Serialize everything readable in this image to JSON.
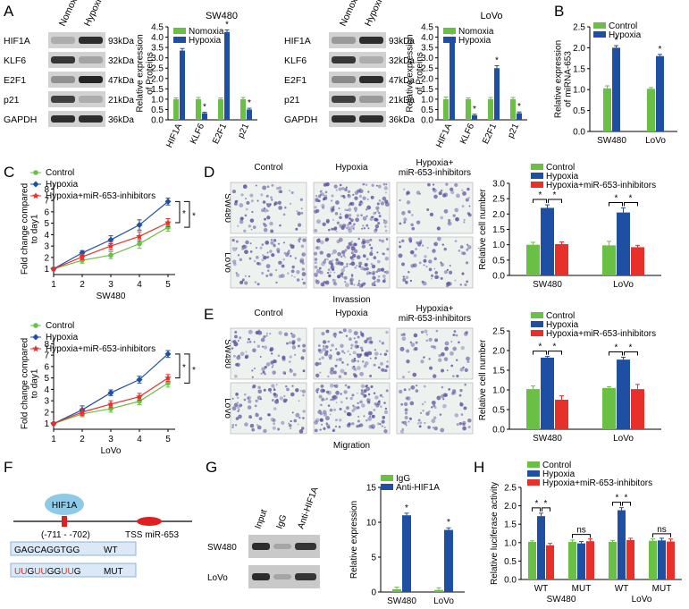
{
  "colors": {
    "control": "#6abf45",
    "hypoxia": "#1f4fa3",
    "inhib": "#e8302a",
    "blot_bg": "#d2d2d2",
    "band": "#1b1b1b",
    "box_fill": "#dbe9f7",
    "box_stroke": "#8fb3d6",
    "hif": "#8ecae6",
    "tss": "#e02020",
    "mut": "#c0392b",
    "micro_bg": "#eef2ef",
    "cell": "#5b4f9c"
  },
  "panels": {
    "A": "A",
    "B": "B",
    "C": "C",
    "D": "D",
    "E": "E",
    "F": "F",
    "G": "G",
    "H": "H"
  },
  "common": {
    "star": "*",
    "ns": "ns"
  },
  "blotA": {
    "lanes": [
      "Nomoxia",
      "Hypoxia"
    ],
    "proteins": [
      "HIF1A",
      "KLF6",
      "E2F1",
      "p21",
      "GAPDH"
    ],
    "kda": [
      "93kDa",
      "32kDa",
      "47kDa",
      "21kDa",
      "36kDa"
    ]
  },
  "blotA_sw": {
    "intensity": [
      [
        0.2,
        0.9
      ],
      [
        0.85,
        0.25
      ],
      [
        0.35,
        0.95
      ],
      [
        0.8,
        0.2
      ],
      [
        0.9,
        0.9
      ]
    ]
  },
  "blotA_lovo": {
    "intensity": [
      [
        0.3,
        0.9
      ],
      [
        0.85,
        0.2
      ],
      [
        0.4,
        0.9
      ],
      [
        0.8,
        0.3
      ],
      [
        0.9,
        0.9
      ]
    ]
  },
  "chart_data": [
    {
      "id": "A1",
      "type": "bar",
      "title": "SW480",
      "ylabel": "Relative expression\nof Proteins",
      "ylim": [
        0,
        4.5
      ],
      "yticks": [
        "0.0",
        "0.5",
        "1.0",
        "1.5",
        "2.0",
        "2.5",
        "3.0",
        "3.5",
        "4.0",
        "4.5"
      ],
      "tickvals": [
        0,
        0.5,
        1,
        1.5,
        2,
        2.5,
        3,
        3.5,
        4,
        4.5
      ],
      "categories": [
        "HIF1A",
        "KLF6",
        "E2F1",
        "p21"
      ],
      "legend": [
        "Nomoxia",
        "Hypoxia"
      ],
      "series": [
        {
          "name": "Nomoxia",
          "values": [
            1.0,
            1.0,
            1.0,
            1.0
          ],
          "err": [
            0.06,
            0.08,
            0.06,
            0.08
          ]
        },
        {
          "name": "Hypoxia",
          "values": [
            3.35,
            0.32,
            4.25,
            0.5
          ],
          "err": [
            0.1,
            0.05,
            0.1,
            0.06
          ]
        }
      ],
      "stars": [
        1,
        1,
        1,
        1
      ]
    },
    {
      "id": "A2",
      "type": "bar",
      "title": "LoVo",
      "ylabel": "Relative expression\nof Proteins",
      "ylim": [
        0,
        4.5
      ],
      "yticks": [
        "0.0",
        "0.5",
        "1.0",
        "1.5",
        "2.0",
        "2.5",
        "3.0",
        "3.5",
        "4.0",
        "4.5"
      ],
      "tickvals": [
        0,
        0.5,
        1,
        1.5,
        2,
        2.5,
        3,
        3.5,
        4,
        4.5
      ],
      "categories": [
        "HIF1A",
        "KLF6",
        "E2F1",
        "p21"
      ],
      "legend": [
        "Nomoxia",
        "Hypoxia"
      ],
      "series": [
        {
          "name": "Nomoxia",
          "values": [
            1.0,
            1.0,
            1.0,
            1.0
          ],
          "err": [
            0.1,
            0.06,
            0.08,
            0.08
          ]
        },
        {
          "name": "Hypoxia",
          "values": [
            3.75,
            0.22,
            2.5,
            0.32
          ],
          "err": [
            0.1,
            0.05,
            0.12,
            0.06
          ]
        }
      ],
      "stars": [
        1,
        1,
        1,
        1
      ]
    },
    {
      "id": "B",
      "type": "bar",
      "title": "",
      "ylabel": "Relative expression\nof miRNA-653",
      "ylim": [
        0,
        2.5
      ],
      "yticks": [
        "0.0",
        "0.5",
        "1.0",
        "1.5",
        "2.0",
        "2.5"
      ],
      "tickvals": [
        0,
        0.5,
        1,
        1.5,
        2,
        2.5
      ],
      "categories": [
        "SW480",
        "LoVo"
      ],
      "legend": [
        "Control",
        "Hypoxia"
      ],
      "series": [
        {
          "name": "Control",
          "values": [
            1.03,
            1.02
          ],
          "err": [
            0.06,
            0.03
          ]
        },
        {
          "name": "Hypoxia",
          "values": [
            2.0,
            1.8
          ],
          "err": [
            0.05,
            0.04
          ]
        }
      ],
      "stars": [
        1,
        1
      ]
    },
    {
      "id": "C1",
      "type": "line",
      "xlabel": "SW480",
      "ylabel": "Fold change compared\nto day1",
      "ylim": [
        0.5,
        8.5
      ],
      "yticks": [
        "1",
        "2",
        "3",
        "4",
        "5",
        "6",
        "7",
        "8"
      ],
      "tickvals": [
        1,
        2,
        3,
        4,
        5,
        6,
        7,
        8
      ],
      "x": [
        "1",
        "2",
        "3",
        "4",
        "5"
      ],
      "legend": [
        "Control",
        "Hypoxia",
        "Hypoxia+miR-653-inhibitors"
      ],
      "series": [
        {
          "name": "Control",
          "values": [
            1.0,
            1.75,
            2.2,
            3.2,
            4.65
          ],
          "err": [
            0.05,
            0.25,
            0.3,
            0.4,
            0.35
          ]
        },
        {
          "name": "Hypoxia",
          "values": [
            1.0,
            2.4,
            3.55,
            4.85,
            6.9
          ],
          "err": [
            0.05,
            0.2,
            0.35,
            0.45,
            0.3
          ]
        },
        {
          "name": "Hypoxia+miR-653-inhibitors",
          "values": [
            1.0,
            2.05,
            3.0,
            3.85,
            5.05
          ],
          "err": [
            0.05,
            0.25,
            0.35,
            0.4,
            0.35
          ]
        }
      ],
      "stars": [
        "*",
        "*"
      ]
    },
    {
      "id": "C2",
      "type": "line",
      "xlabel": "LoVo",
      "ylabel": "Fold change compared\nto day1",
      "ylim": [
        0.5,
        8.5
      ],
      "yticks": [
        "1",
        "2",
        "3",
        "4",
        "5",
        "6",
        "7",
        "8"
      ],
      "tickvals": [
        1,
        2,
        3,
        4,
        5,
        6,
        7,
        8
      ],
      "x": [
        "1",
        "2",
        "3",
        "4",
        "5"
      ],
      "legend": [
        "Control",
        "Hypoxia",
        "Hypoxia+miR-653-inhibitors"
      ],
      "series": [
        {
          "name": "Control",
          "values": [
            1.0,
            1.85,
            2.3,
            2.95,
            4.55
          ],
          "err": [
            0.05,
            0.25,
            0.3,
            0.3,
            0.35
          ]
        },
        {
          "name": "Hypoxia",
          "values": [
            1.0,
            2.2,
            3.7,
            4.85,
            7.1
          ],
          "err": [
            0.05,
            0.35,
            0.25,
            0.3,
            0.3
          ]
        },
        {
          "name": "Hypoxia+miR-653-inhibitors",
          "values": [
            1.0,
            2.0,
            2.7,
            3.35,
            5.0
          ],
          "err": [
            0.05,
            0.3,
            0.3,
            0.3,
            0.3
          ]
        }
      ],
      "stars": [
        "*",
        "*"
      ]
    },
    {
      "id": "D",
      "type": "bar",
      "ylabel": "Relative cell number",
      "ylim": [
        0,
        3.0
      ],
      "yticks": [
        "0.0",
        "0.5",
        "1.0",
        "1.5",
        "2.0",
        "2.5",
        "3.0"
      ],
      "tickvals": [
        0,
        0.5,
        1,
        1.5,
        2,
        2.5,
        3
      ],
      "categories": [
        "SW480",
        "LoVo"
      ],
      "legend": [
        "Control",
        "Hypoxia",
        "Hypoxia+miR-653-inhibitors"
      ],
      "series": [
        {
          "name": "Control",
          "values": [
            1.0,
            0.98
          ],
          "err": [
            0.08,
            0.13
          ]
        },
        {
          "name": "Hypoxia",
          "values": [
            2.2,
            2.05
          ],
          "err": [
            0.1,
            0.15
          ]
        },
        {
          "name": "Hypoxia+miR-653-inhibitors",
          "values": [
            1.02,
            0.92
          ],
          "err": [
            0.07,
            0.06
          ]
        }
      ],
      "stars": [
        "* *",
        "* *"
      ]
    },
    {
      "id": "E",
      "type": "bar",
      "ylabel": "Relative cell number",
      "ylim": [
        0,
        2.5
      ],
      "yticks": [
        "0.0",
        "0.5",
        "1.0",
        "1.5",
        "2.0",
        "2.5"
      ],
      "tickvals": [
        0,
        0.5,
        1,
        1.5,
        2,
        2.5
      ],
      "categories": [
        "SW480",
        "LoVo"
      ],
      "legend": [
        "Control",
        "Hypoxia",
        "Hypoxia+miR-653-inhibitors"
      ],
      "series": [
        {
          "name": "Control",
          "values": [
            1.02,
            1.05
          ],
          "err": [
            0.08,
            0.03
          ]
        },
        {
          "name": "Hypoxia",
          "values": [
            1.82,
            1.77
          ],
          "err": [
            0.03,
            0.06
          ]
        },
        {
          "name": "Hypoxia+miR-653-inhibitors",
          "values": [
            0.75,
            1.02
          ],
          "err": [
            0.1,
            0.12
          ]
        }
      ],
      "stars": [
        "* *",
        "* *"
      ]
    },
    {
      "id": "G",
      "type": "bar",
      "ylabel": "Relative expression",
      "ylim": [
        0,
        15
      ],
      "yticks": [
        "0",
        "5",
        "10",
        "15"
      ],
      "tickvals": [
        0,
        5,
        10,
        15
      ],
      "categories": [
        "SW480",
        "LoVo"
      ],
      "legend": [
        "IgG",
        "Anti-HIF1A"
      ],
      "series": [
        {
          "name": "IgG",
          "values": [
            0.4,
            0.3
          ],
          "err": [
            0.3,
            0.3
          ]
        },
        {
          "name": "Anti-HIF1A",
          "values": [
            11.0,
            8.9
          ],
          "err": [
            0.3,
            0.3
          ]
        }
      ],
      "stars": [
        1,
        1
      ]
    },
    {
      "id": "H",
      "type": "bar",
      "ylabel": "Relative luciferase activity",
      "ylim": [
        0,
        2.5
      ],
      "yticks": [
        "0.0",
        "0.5",
        "1.0",
        "1.5",
        "2.0",
        "2.5"
      ],
      "tickvals": [
        0,
        0.5,
        1,
        1.5,
        2,
        2.5
      ],
      "categories": [
        "WT",
        "MUT",
        "WT",
        "MUT"
      ],
      "groups": [
        "SW480",
        "LoVo"
      ],
      "legend": [
        "Control",
        "Hypoxia",
        "Hypoxia+miR-653-inhibitors"
      ],
      "series": [
        {
          "name": "Control",
          "values": [
            1.02,
            1.02,
            1.02,
            1.05
          ],
          "err": [
            0.03,
            0.05,
            0.04,
            0.05
          ]
        },
        {
          "name": "Hypoxia",
          "values": [
            1.72,
            0.98,
            1.88,
            1.06
          ],
          "err": [
            0.08,
            0.05,
            0.07,
            0.06
          ]
        },
        {
          "name": "Hypoxia+miR-653-inhibitors",
          "values": [
            0.93,
            1.04,
            1.07,
            1.03
          ],
          "err": [
            0.05,
            0.06,
            0.05,
            0.07
          ]
        }
      ],
      "stars": [
        "* *",
        "ns",
        "* *",
        "ns"
      ]
    }
  ],
  "micro": {
    "cols": [
      "Control",
      "Hypoxia",
      "Hypoxia+\nmiR-653-inhibitors"
    ],
    "rows": [
      "SW480",
      "LoVo"
    ],
    "d_caption": "Invassion",
    "e_caption": "Migration"
  },
  "promoter": {
    "tf": "HIF1A",
    "range": "(-711 - -702)",
    "tss": "TSS miR-653",
    "wt_seq": "GAGCAGGTGG",
    "wt": "WT",
    "mut_seq": "UUGUUGGUUG",
    "mut": "MUT"
  },
  "chip": {
    "lanes": [
      "Input",
      "IgG",
      "Anti-HIF1A"
    ],
    "rows": [
      "SW480",
      "LoVo"
    ]
  }
}
